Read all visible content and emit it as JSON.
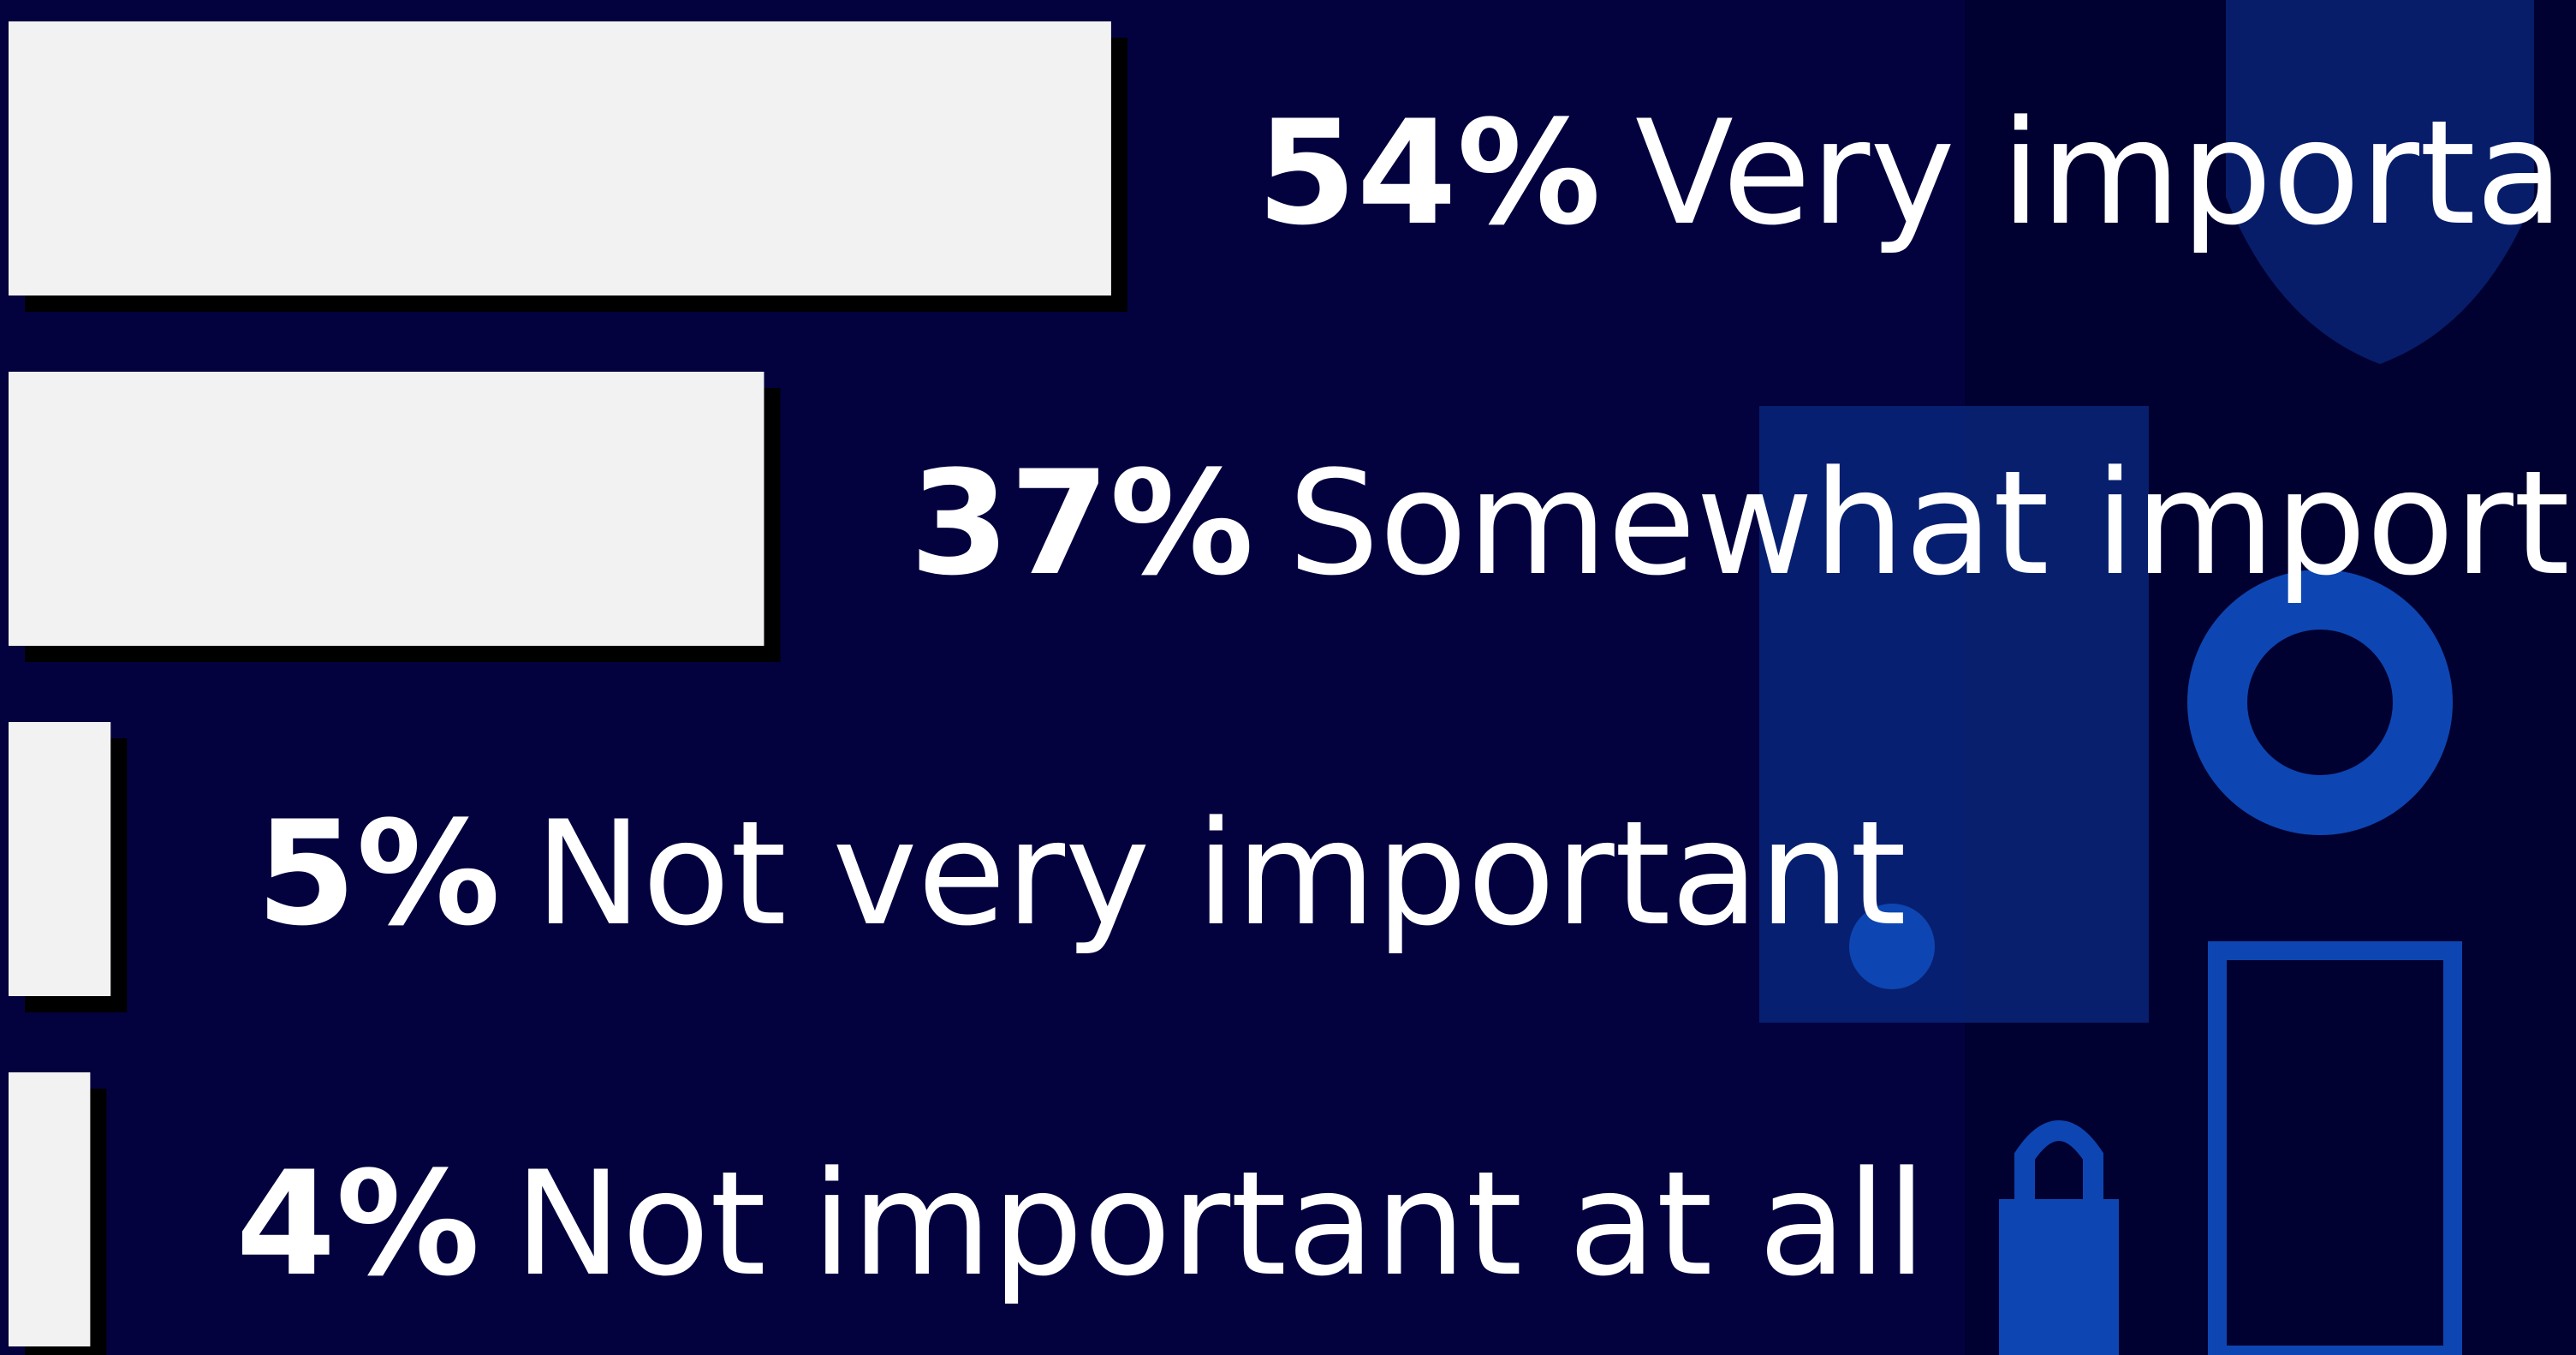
{
  "chart_data": {
    "type": "bar",
    "orientation": "horizontal",
    "categories": [
      "Very important",
      "Somewhat important",
      "Not very important",
      "Not important at all"
    ],
    "values": [
      54,
      37,
      5,
      4
    ],
    "value_labels": [
      "54%",
      "37%",
      "5%",
      "4%"
    ],
    "color": "#f2f2f2"
  }
}
